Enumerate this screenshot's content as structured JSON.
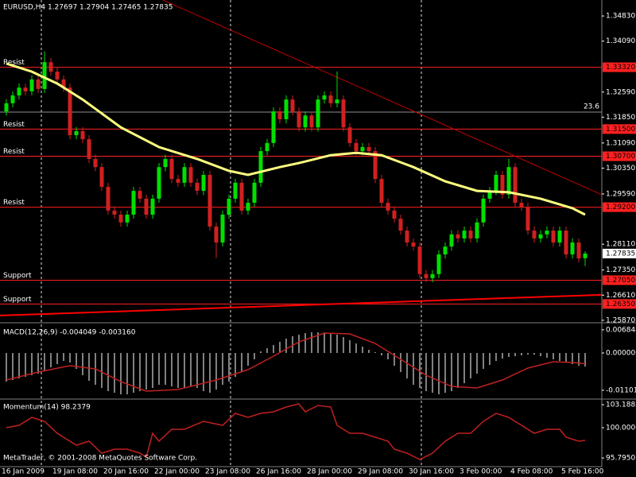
{
  "chart_data": [
    {
      "type": "candlestick",
      "title": "EURUSD,H4 1.27697 1.27904 1.27465 1.27835",
      "x_labels": [
        "16 Jan 2009",
        "19 Jan 08:00",
        "20 Jan 16:00",
        "22 Jan 00:00",
        "23 Jan 08:00",
        "26 Jan 16:00",
        "28 Jan 00:00",
        "29 Jan 08:00",
        "30 Jan 16:00",
        "3 Feb 00:00",
        "4 Feb 08:00",
        "5 Feb 16:00"
      ],
      "open": [
        1.3202,
        1.3226,
        1.3249,
        1.3272,
        1.3261,
        1.3296,
        1.3268,
        1.3347,
        1.3319,
        1.3296,
        1.3272,
        1.3132,
        1.3144,
        1.312,
        1.3062,
        1.3038,
        1.298,
        1.291,
        1.2898,
        1.2875,
        1.2898,
        1.2968,
        1.2945,
        1.2898,
        1.2945,
        1.3038,
        1.3062,
        1.3003,
        1.2992,
        1.3038,
        1.2992,
        1.2968,
        1.3015,
        1.2863,
        1.2816,
        1.2898,
        1.2945,
        1.2992,
        1.291,
        1.2933,
        1.2992,
        1.3085,
        1.3109,
        1.3202,
        1.3179,
        1.3237,
        1.3202,
        1.3155,
        1.319,
        1.3155,
        1.3237,
        1.3249,
        1.3226,
        1.3237,
        1.3155,
        1.3109,
        1.3085,
        1.3097,
        1.3085,
        1.3003,
        1.2933,
        1.291,
        1.2886,
        1.2851,
        1.2816,
        1.2804,
        1.2723,
        1.2711,
        1.2723,
        1.2781,
        1.2804,
        1.284,
        1.2828,
        1.2851,
        1.2828,
        1.2875,
        1.2945,
        1.2968,
        1.3015,
        1.2957,
        1.3038,
        1.2933,
        1.2921,
        1.2851,
        1.2828,
        1.284,
        1.2851,
        1.2816,
        1.2851,
        1.2781,
        1.2816,
        1.27697
      ],
      "high": [
        1.3238,
        1.3261,
        1.3284,
        1.3284,
        1.3308,
        1.3308,
        1.3378,
        1.3359,
        1.3331,
        1.3308,
        1.3284,
        1.3156,
        1.3156,
        1.3132,
        1.3074,
        1.305,
        1.2992,
        1.2922,
        1.291,
        1.291,
        1.298,
        1.298,
        1.2957,
        1.2957,
        1.305,
        1.3074,
        1.3074,
        1.3015,
        1.305,
        1.305,
        1.3004,
        1.3027,
        1.3027,
        1.2875,
        1.291,
        1.2957,
        1.3004,
        1.3004,
        1.2945,
        1.3004,
        1.3097,
        1.3121,
        1.3214,
        1.3214,
        1.3249,
        1.3249,
        1.3214,
        1.3202,
        1.3202,
        1.3249,
        1.3261,
        1.3261,
        1.332,
        1.3249,
        1.3167,
        1.3121,
        1.3109,
        1.3109,
        1.3097,
        1.3015,
        1.2945,
        1.2922,
        1.2898,
        1.2863,
        1.2828,
        1.2816,
        1.2735,
        1.2735,
        1.2793,
        1.2816,
        1.2852,
        1.2852,
        1.2863,
        1.2863,
        1.2887,
        1.2957,
        1.298,
        1.3027,
        1.3027,
        1.3062,
        1.305,
        1.2945,
        1.2933,
        1.2863,
        1.2852,
        1.2863,
        1.2863,
        1.2863,
        1.2863,
        1.2828,
        1.2828,
        1.27904
      ],
      "low": [
        1.319,
        1.3214,
        1.3237,
        1.3249,
        1.3249,
        1.3256,
        1.3256,
        1.3307,
        1.3284,
        1.326,
        1.312,
        1.312,
        1.3108,
        1.305,
        1.3026,
        1.2968,
        1.2898,
        1.2886,
        1.2863,
        1.2863,
        1.2886,
        1.2933,
        1.2886,
        1.2886,
        1.2933,
        1.3026,
        1.2991,
        1.298,
        1.298,
        1.298,
        1.2956,
        1.2956,
        1.2851,
        1.277,
        1.2804,
        1.2886,
        1.2933,
        1.2898,
        1.2898,
        1.2921,
        1.298,
        1.3073,
        1.3097,
        1.3167,
        1.3167,
        1.319,
        1.3143,
        1.3143,
        1.3143,
        1.3143,
        1.3225,
        1.3214,
        1.3214,
        1.3143,
        1.3097,
        1.3073,
        1.3073,
        1.3073,
        1.2991,
        1.2921,
        1.2898,
        1.2874,
        1.2839,
        1.2804,
        1.2792,
        1.2711,
        1.2699,
        1.2699,
        1.2711,
        1.2769,
        1.2792,
        1.2816,
        1.2816,
        1.2816,
        1.2816,
        1.2863,
        1.2933,
        1.2956,
        1.2945,
        1.2945,
        1.2921,
        1.2909,
        1.2839,
        1.2816,
        1.2816,
        1.2828,
        1.2804,
        1.2804,
        1.2769,
        1.2769,
        1.2757,
        1.27465
      ],
      "close": [
        1.3226,
        1.3249,
        1.3272,
        1.3261,
        1.3296,
        1.3268,
        1.3347,
        1.3319,
        1.3296,
        1.3272,
        1.3132,
        1.3144,
        1.312,
        1.3062,
        1.3038,
        1.298,
        1.291,
        1.2898,
        1.2875,
        1.2898,
        1.2968,
        1.2945,
        1.2898,
        1.2945,
        1.3038,
        1.3062,
        1.3003,
        1.2992,
        1.3038,
        1.2992,
        1.2968,
        1.3015,
        1.2863,
        1.2816,
        1.2898,
        1.2945,
        1.2992,
        1.291,
        1.2933,
        1.2992,
        1.3085,
        1.3109,
        1.3202,
        1.3179,
        1.3237,
        1.3202,
        1.3155,
        1.319,
        1.3155,
        1.3237,
        1.3249,
        1.3226,
        1.3237,
        1.3155,
        1.3109,
        1.3085,
        1.3097,
        1.3085,
        1.3003,
        1.2933,
        1.291,
        1.2886,
        1.2851,
        1.2816,
        1.2804,
        1.2723,
        1.2711,
        1.2723,
        1.2781,
        1.2804,
        1.284,
        1.2828,
        1.2851,
        1.2828,
        1.2875,
        1.2945,
        1.2968,
        1.3015,
        1.2957,
        1.3038,
        1.2933,
        1.2921,
        1.2851,
        1.2828,
        1.284,
        1.2851,
        1.2816,
        1.2851,
        1.2781,
        1.2816,
        1.2769,
        1.27835
      ],
      "up_color": "#00e000",
      "down_color": "#d02020",
      "ylim": [
        1.2582,
        1.353
      ],
      "yticks": [
        {
          "value": 1.3483,
          "label": "1.34830"
        },
        {
          "value": 1.3409,
          "label": "1.34090"
        },
        {
          "value": 1.3259,
          "label": "1.32590"
        },
        {
          "value": 1.3185,
          "label": "1.31850"
        },
        {
          "value": 1.3109,
          "label": "1.31090"
        },
        {
          "value": 1.3035,
          "label": "1.30350"
        },
        {
          "value": 1.2959,
          "label": "1.29590"
        },
        {
          "value": 1.2811,
          "label": "1.28110"
        },
        {
          "value": 1.2735,
          "label": "1.27350"
        },
        {
          "value": 1.2661,
          "label": "1.26610"
        },
        {
          "value": 1.2587,
          "label": "1.25870"
        }
      ],
      "moving_average": {
        "color": "#ffff80",
        "x": [
          0,
          4,
          8,
          12,
          18,
          24,
          30,
          35,
          38,
          43,
          46,
          51,
          55,
          59,
          64,
          69,
          74,
          79,
          84,
          89,
          91
        ],
        "values": [
          1.3343,
          1.3319,
          1.3284,
          1.3237,
          1.3155,
          1.3097,
          1.3062,
          1.3027,
          1.3015,
          1.3038,
          1.305,
          1.3073,
          1.308,
          1.3073,
          1.3038,
          1.2996,
          1.2968,
          1.2964,
          1.2945,
          1.2917,
          1.2898
        ]
      },
      "levels": [
        {
          "name": "Resist",
          "value": 1.3332,
          "label": "1.33320",
          "color": "#ff2020"
        },
        {
          "name": "Resist",
          "value": 1.315,
          "label": "1.31500",
          "color": "#ff2020"
        },
        {
          "name": "Resist",
          "value": 1.307,
          "label": "1.30700",
          "color": "#ff2020"
        },
        {
          "name": "Resist",
          "value": 1.292,
          "label": "1.29200",
          "color": "#ff2020"
        },
        {
          "name": "Support",
          "value": 1.2705,
          "label": "1.27050",
          "color": "#ff2020"
        },
        {
          "name": "Support",
          "value": 1.2635,
          "label": "1.26350",
          "color": "#ff2020"
        }
      ],
      "fibo_level": {
        "name": "23.6",
        "value": 1.32,
        "color": "#909090"
      },
      "current_price": {
        "value": 1.27835,
        "label": "1.27835"
      },
      "trendlines": [
        {
          "x": [
            24.6,
            93.6
          ],
          "y": [
            1.353,
            1.2957
          ],
          "color": "#c00000",
          "width": 1
        },
        {
          "x": [
            -1,
            93.6
          ],
          "y": [
            1.2601,
            1.2662
          ],
          "color": "#ff0000",
          "width": 2
        }
      ]
    },
    {
      "type": "macd",
      "title": "MACD(12,26,9) -0.004049 -0.003160",
      "histogram": [
        -0.00846,
        -0.00799,
        -0.00752,
        -0.00705,
        -0.00658,
        -0.00611,
        -0.00517,
        -0.00423,
        -0.00329,
        -0.00235,
        -0.00282,
        -0.0047,
        -0.00658,
        -0.00823,
        -0.0094,
        -0.01034,
        -0.01128,
        -0.01175,
        -0.01222,
        -0.01222,
        -0.01175,
        -0.01128,
        -0.01081,
        -0.01034,
        -0.0094,
        -0.0094,
        -0.00987,
        -0.01034,
        -0.01034,
        -0.00987,
        -0.01034,
        -0.01128,
        -0.01175,
        -0.01081,
        -0.0094,
        -0.00846,
        -0.00705,
        -0.00564,
        -0.00376,
        -0.00188,
        0.00047,
        0.00141,
        0.00235,
        0.00329,
        0.00423,
        0.00494,
        0.00541,
        0.00588,
        0.00611,
        0.00611,
        0.00611,
        0.00588,
        0.00541,
        0.0047,
        0.00376,
        0.00282,
        0.00188,
        0.00094,
        0.00024,
        -0.00071,
        -0.00188,
        -0.00376,
        -0.00564,
        -0.00752,
        -0.0094,
        -0.01034,
        -0.01128,
        -0.01175,
        -0.01222,
        -0.01175,
        -0.01128,
        -0.01034,
        -0.00893,
        -0.00752,
        -0.00611,
        -0.0047,
        -0.00353,
        -0.00235,
        -0.00165,
        -0.00118,
        -0.00094,
        -0.00071,
        -0.00047,
        -0.00047,
        -0.00094,
        -0.00141,
        -0.00188,
        -0.00235,
        -0.00282,
        -0.00329,
        -0.00376,
        -0.004049
      ],
      "histogram_color": "#ffffff",
      "signal": {
        "color": "#c02020",
        "x": [
          0,
          5,
          10,
          14,
          18,
          22,
          27,
          33,
          38,
          42,
          46,
          50,
          54,
          58,
          62,
          66,
          70,
          74,
          78,
          82,
          86,
          89,
          91
        ],
        "values": [
          -0.00799,
          -0.00564,
          -0.00376,
          -0.0047,
          -0.00846,
          -0.01128,
          -0.01081,
          -0.00799,
          -0.00494,
          -0.00094,
          0.00329,
          0.00588,
          0.00564,
          0.00282,
          -0.00188,
          -0.00658,
          -0.00987,
          -0.01034,
          -0.00799,
          -0.00447,
          -0.00259,
          -0.00282,
          -0.00316
        ]
      },
      "ylim": [
        -0.01316,
        0.00846
      ],
      "yticks": [
        0.006844,
        {
          "value": 0,
          "label": "0.000000"
        },
        {
          "value": -0.01101,
          "label": "-0.011010"
        }
      ]
    },
    {
      "type": "momentum",
      "title": "Momentum(14) 98.2379",
      "color": "#c02020",
      "x": [
        0,
        2,
        4,
        6,
        8,
        11,
        13,
        15,
        17,
        19,
        21,
        22,
        23,
        24,
        26,
        28,
        31,
        34,
        36,
        38,
        40,
        42,
        44,
        46,
        47,
        49,
        51,
        52,
        54,
        56,
        58,
        60,
        61,
        63,
        65,
        67,
        69,
        71,
        73,
        75,
        77,
        79,
        81,
        83,
        85,
        87,
        88,
        90,
        91
      ],
      "values": [
        100,
        100.33,
        101.43,
        100.88,
        99.23,
        97.57,
        98.12,
        96.47,
        97.02,
        97.02,
        96.47,
        95.92,
        99.23,
        98.12,
        99.78,
        99.78,
        100.88,
        100.33,
        101.99,
        101.43,
        101.99,
        102.21,
        102.87,
        103.31,
        102.21,
        103.09,
        102.87,
        100.33,
        99.23,
        99.23,
        98.68,
        98.12,
        97.02,
        96.47,
        95.58,
        96.47,
        98.12,
        99.23,
        99.23,
        100.88,
        101.99,
        101.43,
        100.33,
        99.23,
        99.78,
        99.78,
        98.68,
        98.12,
        98.2379
      ],
      "ylim": [
        94.7,
        103.75
      ],
      "yticks": [
        103.1882,
        {
          "value": 100,
          "label": "100.0000"
        },
        {
          "value": 95.795,
          "label": "95.7950"
        }
      ]
    }
  ],
  "footer": "MetaTrader, © 2001-2008 MetaQuotes Software Corp."
}
